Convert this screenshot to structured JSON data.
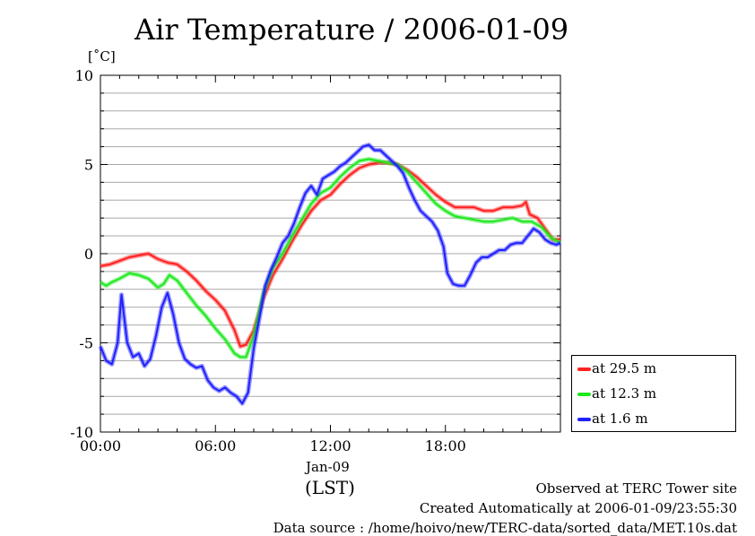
{
  "page": {
    "footer_site": "Observed at TERC Tower site",
    "footer_created": "Created Automatically at 2006-01-09/23:55:30",
    "footer_source": "Data source : /home/hoivo/new/TERC-data/sorted_data/MET.10s.dat"
  },
  "chart_data": {
    "type": "line",
    "title": "Air Temperature / 2006-01-09",
    "ylabel": "[˚C]",
    "xlabel": "(LST)",
    "x_date_label": "Jan-09",
    "x_unit": "hour",
    "xlim": [
      0,
      24
    ],
    "ylim": [
      -10,
      10
    ],
    "x_ticks": [
      0,
      6,
      12,
      18
    ],
    "x_tick_labels": [
      "00:00",
      "06:00",
      "12:00",
      "18:00"
    ],
    "y_ticks": [
      -10,
      -5,
      0,
      5,
      10
    ],
    "y_tick_labels": [
      "-10",
      "-5",
      "0",
      "5",
      "10"
    ],
    "grid": "horizontal every 1 ˚C",
    "legend_position": "right, outside plot, bottom",
    "series": [
      {
        "name": "at 29.5 m",
        "color": "#ff2020",
        "points": [
          [
            0,
            -0.7
          ],
          [
            0.5,
            -0.6
          ],
          [
            1,
            -0.4
          ],
          [
            1.5,
            -0.2
          ],
          [
            2,
            -0.1
          ],
          [
            2.5,
            0.0
          ],
          [
            3,
            -0.3
          ],
          [
            3.5,
            -0.5
          ],
          [
            4,
            -0.6
          ],
          [
            4.5,
            -1.0
          ],
          [
            5,
            -1.5
          ],
          [
            5.5,
            -2.1
          ],
          [
            6,
            -2.6
          ],
          [
            6.5,
            -3.2
          ],
          [
            7,
            -4.3
          ],
          [
            7.3,
            -5.2
          ],
          [
            7.6,
            -5.1
          ],
          [
            8,
            -4.3
          ],
          [
            8.5,
            -2.5
          ],
          [
            9,
            -1.2
          ],
          [
            9.5,
            -0.3
          ],
          [
            10,
            0.7
          ],
          [
            10.5,
            1.6
          ],
          [
            11,
            2.4
          ],
          [
            11.5,
            3.0
          ],
          [
            12,
            3.3
          ],
          [
            12.5,
            3.9
          ],
          [
            13,
            4.4
          ],
          [
            13.5,
            4.8
          ],
          [
            14,
            5.0
          ],
          [
            14.5,
            5.1
          ],
          [
            15,
            5.1
          ],
          [
            15.5,
            5.0
          ],
          [
            16,
            4.7
          ],
          [
            16.5,
            4.3
          ],
          [
            17,
            3.8
          ],
          [
            17.5,
            3.3
          ],
          [
            18,
            2.9
          ],
          [
            18.5,
            2.6
          ],
          [
            19,
            2.6
          ],
          [
            19.5,
            2.6
          ],
          [
            20,
            2.4
          ],
          [
            20.5,
            2.4
          ],
          [
            21,
            2.6
          ],
          [
            21.5,
            2.6
          ],
          [
            22,
            2.7
          ],
          [
            22.2,
            2.9
          ],
          [
            22.4,
            2.2
          ],
          [
            22.8,
            2.0
          ],
          [
            23.2,
            1.4
          ],
          [
            23.6,
            0.8
          ],
          [
            24,
            0.8
          ]
        ]
      },
      {
        "name": "at 12.3 m",
        "color": "#20e820",
        "points": [
          [
            0,
            -1.6
          ],
          [
            0.3,
            -1.8
          ],
          [
            0.6,
            -1.6
          ],
          [
            1,
            -1.4
          ],
          [
            1.5,
            -1.1
          ],
          [
            2,
            -1.2
          ],
          [
            2.5,
            -1.4
          ],
          [
            3,
            -1.9
          ],
          [
            3.3,
            -1.7
          ],
          [
            3.6,
            -1.2
          ],
          [
            4,
            -1.5
          ],
          [
            4.5,
            -2.2
          ],
          [
            5,
            -2.9
          ],
          [
            5.5,
            -3.5
          ],
          [
            6,
            -4.2
          ],
          [
            6.5,
            -4.8
          ],
          [
            7,
            -5.6
          ],
          [
            7.3,
            -5.8
          ],
          [
            7.6,
            -5.8
          ],
          [
            8,
            -4.6
          ],
          [
            8.5,
            -2.2
          ],
          [
            9,
            -0.8
          ],
          [
            9.5,
            0.0
          ],
          [
            10,
            1.0
          ],
          [
            10.5,
            1.9
          ],
          [
            11,
            2.8
          ],
          [
            11.5,
            3.4
          ],
          [
            12,
            3.7
          ],
          [
            12.5,
            4.3
          ],
          [
            13,
            4.8
          ],
          [
            13.5,
            5.2
          ],
          [
            14,
            5.3
          ],
          [
            14.5,
            5.2
          ],
          [
            15,
            5.1
          ],
          [
            15.5,
            5.0
          ],
          [
            16,
            4.6
          ],
          [
            16.5,
            4.0
          ],
          [
            17,
            3.4
          ],
          [
            17.5,
            2.8
          ],
          [
            18,
            2.4
          ],
          [
            18.5,
            2.1
          ],
          [
            19,
            2.0
          ],
          [
            19.5,
            1.9
          ],
          [
            20,
            1.8
          ],
          [
            20.5,
            1.8
          ],
          [
            21,
            1.9
          ],
          [
            21.5,
            2.0
          ],
          [
            22,
            1.8
          ],
          [
            22.5,
            1.8
          ],
          [
            23,
            1.5
          ],
          [
            23.5,
            0.9
          ],
          [
            24,
            0.6
          ]
        ]
      },
      {
        "name": "at 1.6 m",
        "color": "#2020ff",
        "points": [
          [
            0,
            -5.2
          ],
          [
            0.3,
            -6.0
          ],
          [
            0.6,
            -6.2
          ],
          [
            0.9,
            -5.0
          ],
          [
            1.1,
            -2.3
          ],
          [
            1.4,
            -5.0
          ],
          [
            1.7,
            -5.8
          ],
          [
            2,
            -5.6
          ],
          [
            2.3,
            -6.3
          ],
          [
            2.6,
            -5.9
          ],
          [
            2.9,
            -4.6
          ],
          [
            3.2,
            -3.0
          ],
          [
            3.5,
            -2.2
          ],
          [
            3.8,
            -3.4
          ],
          [
            4.1,
            -5.0
          ],
          [
            4.4,
            -5.9
          ],
          [
            4.7,
            -6.2
          ],
          [
            5,
            -6.4
          ],
          [
            5.3,
            -6.3
          ],
          [
            5.6,
            -7.1
          ],
          [
            5.9,
            -7.5
          ],
          [
            6.2,
            -7.7
          ],
          [
            6.5,
            -7.5
          ],
          [
            6.8,
            -7.8
          ],
          [
            7.1,
            -8.0
          ],
          [
            7.4,
            -8.4
          ],
          [
            7.7,
            -7.8
          ],
          [
            8,
            -5.3
          ],
          [
            8.3,
            -3.6
          ],
          [
            8.6,
            -1.8
          ],
          [
            8.9,
            -0.9
          ],
          [
            9.2,
            -0.2
          ],
          [
            9.5,
            0.6
          ],
          [
            9.8,
            1.0
          ],
          [
            10.1,
            1.7
          ],
          [
            10.4,
            2.6
          ],
          [
            10.7,
            3.4
          ],
          [
            11,
            3.8
          ],
          [
            11.3,
            3.3
          ],
          [
            11.6,
            4.2
          ],
          [
            11.9,
            4.4
          ],
          [
            12.2,
            4.6
          ],
          [
            12.5,
            4.9
          ],
          [
            12.8,
            5.1
          ],
          [
            13.1,
            5.4
          ],
          [
            13.4,
            5.7
          ],
          [
            13.7,
            6.0
          ],
          [
            14,
            6.1
          ],
          [
            14.3,
            5.8
          ],
          [
            14.6,
            5.8
          ],
          [
            14.9,
            5.5
          ],
          [
            15.2,
            5.2
          ],
          [
            15.5,
            4.9
          ],
          [
            15.8,
            4.5
          ],
          [
            16.1,
            3.7
          ],
          [
            16.4,
            3.0
          ],
          [
            16.7,
            2.4
          ],
          [
            17,
            2.1
          ],
          [
            17.3,
            1.8
          ],
          [
            17.6,
            1.3
          ],
          [
            17.9,
            0.4
          ],
          [
            18.1,
            -1.1
          ],
          [
            18.4,
            -1.7
          ],
          [
            18.7,
            -1.8
          ],
          [
            19,
            -1.8
          ],
          [
            19.3,
            -1.2
          ],
          [
            19.6,
            -0.5
          ],
          [
            19.9,
            -0.2
          ],
          [
            20.2,
            -0.2
          ],
          [
            20.5,
            0.0
          ],
          [
            20.8,
            0.2
          ],
          [
            21.1,
            0.2
          ],
          [
            21.4,
            0.5
          ],
          [
            21.7,
            0.6
          ],
          [
            22,
            0.6
          ],
          [
            22.3,
            1.0
          ],
          [
            22.6,
            1.4
          ],
          [
            22.9,
            1.2
          ],
          [
            23.2,
            0.8
          ],
          [
            23.5,
            0.6
          ],
          [
            23.8,
            0.5
          ],
          [
            24,
            0.6
          ]
        ]
      }
    ]
  }
}
